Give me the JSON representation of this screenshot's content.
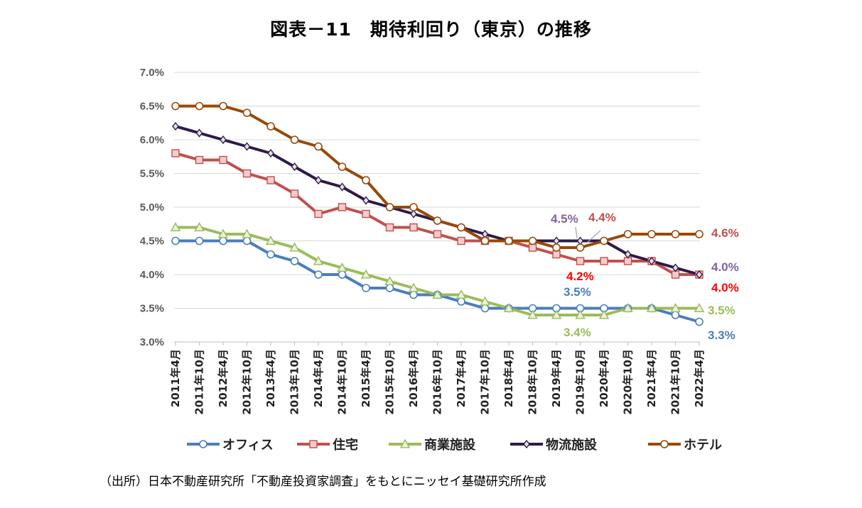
{
  "title": "図表－11　期待利回り（東京）の推移",
  "source": "（出所）日本不動産研究所「不動産投資家調査」をもとにニッセイ基礎研究所作成",
  "chart_data": {
    "type": "line",
    "categories": [
      "2011年4月",
      "2011年10月",
      "2012年4月",
      "2012年10月",
      "2013年4月",
      "2013年10月",
      "2014年4月",
      "2014年10月",
      "2015年4月",
      "2015年10月",
      "2016年4月",
      "2016年10月",
      "2017年4月",
      "2017年10月",
      "2018年4月",
      "2018年10月",
      "2019年4月",
      "2019年10月",
      "2020年4月",
      "2020年10月",
      "2021年4月",
      "2021年10月",
      "2022年4月"
    ],
    "yticks": [
      "7.0%",
      "6.5%",
      "6.0%",
      "5.5%",
      "5.0%",
      "4.5%",
      "4.0%",
      "3.5%",
      "3.0%"
    ],
    "ylim": [
      3.0,
      7.0
    ],
    "grid": true,
    "legend_position": "bottom",
    "series": [
      {
        "name": "オフィス",
        "color": "#4a7ebb",
        "marker": "circle",
        "values": [
          4.5,
          4.5,
          4.5,
          4.5,
          4.3,
          4.2,
          4.0,
          4.0,
          3.8,
          3.8,
          3.7,
          3.7,
          3.6,
          3.5,
          3.5,
          3.5,
          3.5,
          3.5,
          3.5,
          3.5,
          3.5,
          3.4,
          3.3
        ]
      },
      {
        "name": "住宅",
        "color": "#c0504d",
        "marker": "square",
        "values": [
          5.8,
          5.7,
          5.7,
          5.5,
          5.4,
          5.2,
          4.9,
          5.0,
          4.9,
          4.7,
          4.7,
          4.6,
          4.5,
          4.5,
          4.5,
          4.4,
          4.3,
          4.2,
          4.2,
          4.2,
          4.2,
          4.0,
          4.0
        ]
      },
      {
        "name": "商業施設",
        "color": "#9bbb59",
        "marker": "triangle",
        "values": [
          4.7,
          4.7,
          4.6,
          4.6,
          4.5,
          4.4,
          4.2,
          4.1,
          4.0,
          3.9,
          3.8,
          3.7,
          3.7,
          3.6,
          3.5,
          3.4,
          3.4,
          3.4,
          3.4,
          3.5,
          3.5,
          3.5,
          3.5
        ]
      },
      {
        "name": "物流施設",
        "color": "#2e1a47",
        "marker": "diamond",
        "values": [
          6.2,
          6.1,
          6.0,
          5.9,
          5.8,
          5.6,
          5.4,
          5.3,
          5.1,
          5.0,
          4.9,
          4.8,
          4.7,
          4.6,
          4.5,
          4.5,
          4.5,
          4.5,
          4.5,
          4.3,
          4.2,
          4.1,
          4.0
        ]
      },
      {
        "name": "ホテル",
        "color": "#984807",
        "marker": "circle",
        "values": [
          6.5,
          6.5,
          6.5,
          6.4,
          6.2,
          6.0,
          5.9,
          5.6,
          5.4,
          5.0,
          5.0,
          4.8,
          4.7,
          4.5,
          4.5,
          4.5,
          4.4,
          4.4,
          4.5,
          4.6,
          4.6,
          4.6,
          4.6
        ]
      }
    ],
    "annotations": [
      {
        "text": "4.5%",
        "color": "#8064a2"
      },
      {
        "text": "4.4%",
        "color": "#c0504d"
      },
      {
        "text": "4.2%",
        "color": "#ff0000"
      },
      {
        "text": "3.5%",
        "color": "#4a7ebb"
      },
      {
        "text": "3.4%",
        "color": "#9bbb59"
      },
      {
        "text": "4.6%",
        "color": "#c0504d"
      },
      {
        "text": "4.0%",
        "color": "#8064a2"
      },
      {
        "text": "4.0%",
        "color": "#ff0000"
      },
      {
        "text": "3.5%",
        "color": "#9bbb59"
      },
      {
        "text": "3.3%",
        "color": "#4a7ebb"
      }
    ]
  }
}
